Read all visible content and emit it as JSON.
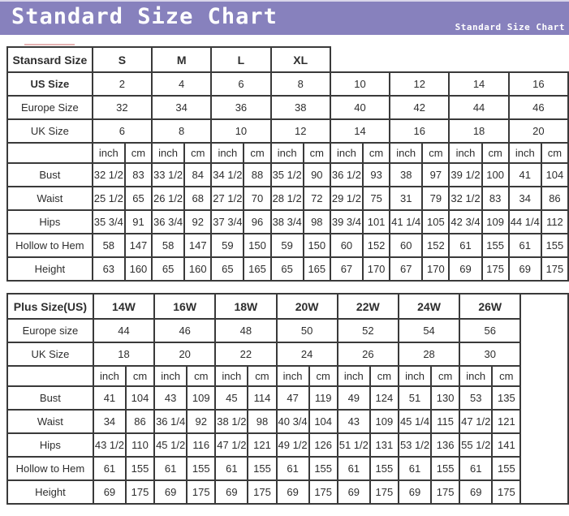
{
  "banner": {
    "title": "Standard Size Chart",
    "subtitle": "Standard Size Chart"
  },
  "colors": {
    "banner_bg": "#8781bd",
    "table_border": "#3a3a3a",
    "text": "#2e2e2e",
    "title_text": "#ffffff"
  },
  "chart_data": [
    {
      "type": "table",
      "title": "Standard sizes",
      "corner_label": "Stansard Size",
      "size_groups": [
        "S",
        "M",
        "L",
        "XL"
      ],
      "size_rows": [
        {
          "label": "US Size",
          "bold": true,
          "values": [
            "2",
            "4",
            "6",
            "8",
            "10",
            "12",
            "14",
            "16"
          ]
        },
        {
          "label": "Europe Size",
          "bold": false,
          "values": [
            "32",
            "34",
            "36",
            "38",
            "40",
            "42",
            "44",
            "46"
          ]
        },
        {
          "label": "UK Size",
          "bold": false,
          "values": [
            "6",
            "8",
            "10",
            "12",
            "14",
            "16",
            "18",
            "20"
          ]
        }
      ],
      "unit_labels": [
        "inch",
        "cm"
      ],
      "unit_pairs": 8,
      "measurement_rows": [
        {
          "label": "Bust",
          "values": [
            "32 1/2",
            "83",
            "33 1/2",
            "84",
            "34 1/2",
            "88",
            "35 1/2",
            "90",
            "36 1/2",
            "93",
            "38",
            "97",
            "39 1/2",
            "100",
            "41",
            "104"
          ]
        },
        {
          "label": "Waist",
          "values": [
            "25 1/2",
            "65",
            "26 1/2",
            "68",
            "27 1/2",
            "70",
            "28 1/2",
            "72",
            "29 1/2",
            "75",
            "31",
            "79",
            "32 1/2",
            "83",
            "34",
            "86"
          ]
        },
        {
          "label": "Hips",
          "values": [
            "35 3/4",
            "91",
            "36 3/4",
            "92",
            "37 3/4",
            "96",
            "38 3/4",
            "98",
            "39 3/4",
            "101",
            "41 1/4",
            "105",
            "42 3/4",
            "109",
            "44 1/4",
            "112"
          ]
        },
        {
          "label": "Hollow to Hem",
          "values": [
            "58",
            "147",
            "58",
            "147",
            "59",
            "150",
            "59",
            "150",
            "60",
            "152",
            "60",
            "152",
            "61",
            "155",
            "61",
            "155"
          ]
        },
        {
          "label": "Height",
          "values": [
            "63",
            "160",
            "65",
            "160",
            "65",
            "165",
            "65",
            "165",
            "67",
            "170",
            "67",
            "170",
            "69",
            "175",
            "69",
            "175"
          ]
        }
      ],
      "trailing_empty_column": false
    },
    {
      "type": "table",
      "title": "Plus sizes",
      "corner_label": "Plus Size(US)",
      "size_groups": [
        "14W",
        "16W",
        "18W",
        "20W",
        "22W",
        "24W",
        "26W"
      ],
      "size_rows": [
        {
          "label": "Europe size",
          "bold": false,
          "values": [
            "44",
            "46",
            "48",
            "50",
            "52",
            "54",
            "56"
          ]
        },
        {
          "label": "UK Size",
          "bold": false,
          "values": [
            "18",
            "20",
            "22",
            "24",
            "26",
            "28",
            "30"
          ]
        }
      ],
      "unit_labels": [
        "inch",
        "cm"
      ],
      "unit_pairs": 7,
      "measurement_rows": [
        {
          "label": "Bust",
          "values": [
            "41",
            "104",
            "43",
            "109",
            "45",
            "114",
            "47",
            "119",
            "49",
            "124",
            "51",
            "130",
            "53",
            "135"
          ]
        },
        {
          "label": "Waist",
          "values": [
            "34",
            "86",
            "36 1/4",
            "92",
            "38 1/2",
            "98",
            "40 3/4",
            "104",
            "43",
            "109",
            "45 1/4",
            "115",
            "47 1/2",
            "121"
          ]
        },
        {
          "label": "Hips",
          "values": [
            "43 1/2",
            "110",
            "45 1/2",
            "116",
            "47 1/2",
            "121",
            "49 1/2",
            "126",
            "51 1/2",
            "131",
            "53 1/2",
            "136",
            "55 1/2",
            "141"
          ]
        },
        {
          "label": "Hollow to Hem",
          "values": [
            "61",
            "155",
            "61",
            "155",
            "61",
            "155",
            "61",
            "155",
            "61",
            "155",
            "61",
            "155",
            "61",
            "155"
          ]
        },
        {
          "label": "Height",
          "values": [
            "69",
            "175",
            "69",
            "175",
            "69",
            "175",
            "69",
            "175",
            "69",
            "175",
            "69",
            "175",
            "69",
            "175"
          ]
        }
      ],
      "trailing_empty_column": true
    }
  ]
}
